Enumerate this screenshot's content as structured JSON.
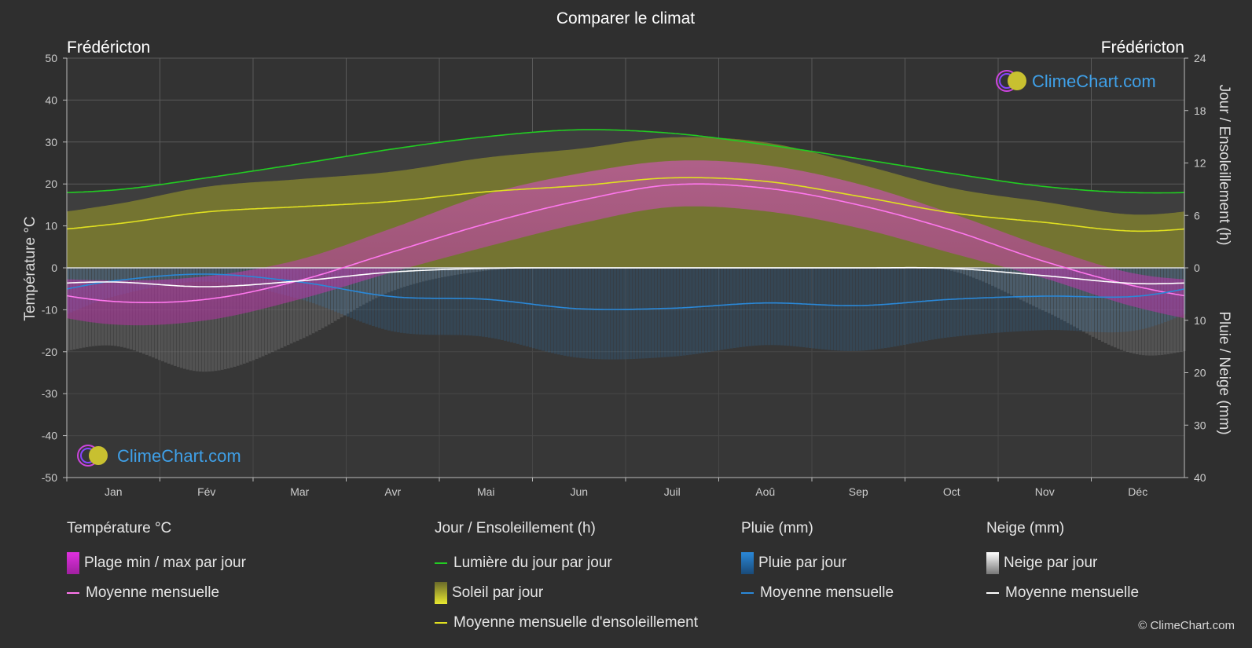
{
  "title": "Comparer le climat",
  "location_left": "Frédéricton",
  "location_right": "Frédéricton",
  "axis_left_label": "Température °C",
  "axis_right_top_label": "Jour / Ensoleillement (h)",
  "axis_right_bottom_label": "Pluie / Neige (mm)",
  "watermark": "ClimeChart.com",
  "copyright": "© ClimeChart.com",
  "legend": {
    "temperature": {
      "title": "Température °C",
      "range": "Plage min / max par jour",
      "mean": "Moyenne mensuelle"
    },
    "sun": {
      "title": "Jour / Ensoleillement (h)",
      "daylight": "Lumière du jour par jour",
      "sunshine": "Soleil par jour",
      "sun_mean": "Moyenne mensuelle d'ensoleillement"
    },
    "rain": {
      "title": "Pluie (mm)",
      "daily": "Pluie par jour",
      "mean": "Moyenne mensuelle"
    },
    "snow": {
      "title": "Neige (mm)",
      "daily": "Neige par jour",
      "mean": "Moyenne mensuelle"
    }
  },
  "colors": {
    "background": "#2f2f2f",
    "daylight": "#22cc22",
    "sunshine_mean": "#e0e020",
    "sunshine_fill": "#9a9a2a",
    "temp_mean": "#ff77ee",
    "temp_range": "#d040c0",
    "rain": "#2a88d8",
    "snow": "#ffffff",
    "grid": "#5a5a5a"
  },
  "chart_data": {
    "type": "line",
    "categories": [
      "Jan",
      "Fév",
      "Mar",
      "Avr",
      "Mai",
      "Jun",
      "Juil",
      "Aoû",
      "Sep",
      "Oct",
      "Nov",
      "Déc"
    ],
    "temperature_axis": {
      "min": -50,
      "max": 50,
      "ticks": [
        50,
        40,
        30,
        20,
        10,
        0,
        -10,
        -20,
        -30,
        -40,
        -50
      ]
    },
    "sun_axis": {
      "min": 0,
      "max": 24,
      "ticks": [
        24,
        18,
        12,
        6,
        0
      ]
    },
    "precip_axis": {
      "min": 0,
      "max": 40,
      "ticks": [
        0,
        10,
        20,
        30,
        40
      ]
    },
    "series": [
      {
        "name": "Lumière du jour par jour",
        "axis": "sun",
        "values": [
          8.9,
          10.3,
          11.9,
          13.6,
          15.0,
          15.8,
          15.4,
          14.1,
          12.5,
          10.8,
          9.3,
          8.6
        ]
      },
      {
        "name": "Moyenne mensuelle d'ensoleillement",
        "axis": "sun",
        "values": [
          5.0,
          6.4,
          7.0,
          7.6,
          8.7,
          9.4,
          10.3,
          9.9,
          8.2,
          6.3,
          5.2,
          4.2
        ]
      },
      {
        "name": "Moyenne mensuelle",
        "kind": "temperature",
        "axis": "temperature",
        "values": [
          -8.0,
          -7.5,
          -3.0,
          3.8,
          10.5,
          16.0,
          19.8,
          19.0,
          15.0,
          9.0,
          1.5,
          -4.5
        ]
      },
      {
        "name": "Moyenne mensuelle",
        "kind": "rain",
        "axis": "precip",
        "values": [
          2.5,
          1.2,
          2.7,
          5.5,
          6.0,
          7.8,
          7.7,
          6.7,
          7.2,
          6.0,
          5.4,
          5.4
        ]
      },
      {
        "name": "Moyenne mensuelle",
        "kind": "snow",
        "axis": "precip",
        "values": [
          2.7,
          3.6,
          2.5,
          0.8,
          0.1,
          0.0,
          0.0,
          0.0,
          0.0,
          0.1,
          1.5,
          3.0
        ]
      }
    ],
    "temperature_range": {
      "name": "Plage min / max par jour",
      "min": [
        -13.5,
        -12.5,
        -7.5,
        -1.0,
        5.0,
        10.5,
        14.5,
        13.5,
        9.5,
        3.5,
        -2.5,
        -9.5
      ],
      "max": [
        -3.0,
        -2.0,
        2.0,
        9.5,
        17.5,
        22.5,
        25.5,
        24.5,
        20.0,
        13.0,
        5.0,
        -1.5
      ]
    },
    "grid": true
  }
}
